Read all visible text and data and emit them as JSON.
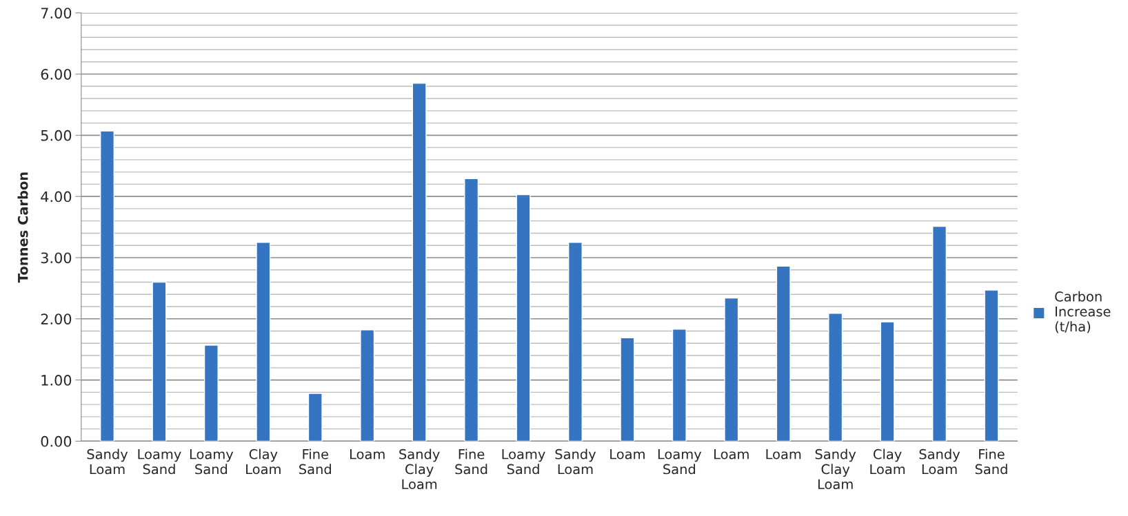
{
  "chart_data": {
    "type": "bar",
    "ylabel": "Tonnes Carbon",
    "categories": [
      "Sandy\nLoam",
      "Loamy\nSand",
      "Loamy\nSand",
      "Clay\nLoam",
      "Fine\nSand",
      "Loam",
      "Sandy\nClay\nLoam",
      "Fine\nSand",
      "Loamy\nSand",
      "Sandy\nLoam",
      "Loam",
      "Loamy\nSand",
      "Loam",
      "Loam",
      "Sandy\nClay\nLoam",
      "Clay\nLoam",
      "Sandy\nLoam",
      "Fine\nSand"
    ],
    "series": [
      {
        "name": "Carbon\nIncrease\n(t/ha)",
        "color": "#3574c0",
        "values": [
          5.07,
          2.6,
          1.57,
          3.25,
          0.78,
          1.82,
          5.85,
          4.29,
          4.03,
          3.25,
          1.69,
          1.83,
          2.34,
          2.86,
          2.09,
          1.95,
          3.51,
          2.47
        ]
      }
    ],
    "ylim": [
      0,
      7
    ],
    "yticks": [
      {
        "value": 0,
        "label": "0.00"
      },
      {
        "value": 0.2,
        "label": null
      },
      {
        "value": 0.4,
        "label": null
      },
      {
        "value": 0.6,
        "label": null
      },
      {
        "value": 0.8,
        "label": null
      },
      {
        "value": 1,
        "label": "1.00"
      },
      {
        "value": 1.2,
        "label": null
      },
      {
        "value": 1.4,
        "label": null
      },
      {
        "value": 1.6,
        "label": null
      },
      {
        "value": 1.8,
        "label": null
      },
      {
        "value": 2,
        "label": "2.00"
      },
      {
        "value": 2.2,
        "label": null
      },
      {
        "value": 2.4,
        "label": null
      },
      {
        "value": 2.6,
        "label": null
      },
      {
        "value": 2.8,
        "label": null
      },
      {
        "value": 3,
        "label": "3.00"
      },
      {
        "value": 3.2,
        "label": null
      },
      {
        "value": 3.4,
        "label": null
      },
      {
        "value": 3.6,
        "label": null
      },
      {
        "value": 3.8,
        "label": null
      },
      {
        "value": 4,
        "label": "4.00"
      },
      {
        "value": 4.2,
        "label": null
      },
      {
        "value": 4.4,
        "label": null
      },
      {
        "value": 4.6,
        "label": null
      },
      {
        "value": 4.8,
        "label": null
      },
      {
        "value": 5,
        "label": "5.00"
      },
      {
        "value": 5.2,
        "label": null
      },
      {
        "value": 5.4,
        "label": null
      },
      {
        "value": 5.6,
        "label": null
      },
      {
        "value": 5.8,
        "label": null
      },
      {
        "value": 6,
        "label": "6.00"
      },
      {
        "value": 6.2,
        "label": null
      },
      {
        "value": 6.4,
        "label": null
      },
      {
        "value": 6.6,
        "label": null
      },
      {
        "value": 6.8,
        "label": null
      },
      {
        "value": 7,
        "label": "7.00"
      }
    ],
    "grid": "y",
    "legend": "right"
  }
}
